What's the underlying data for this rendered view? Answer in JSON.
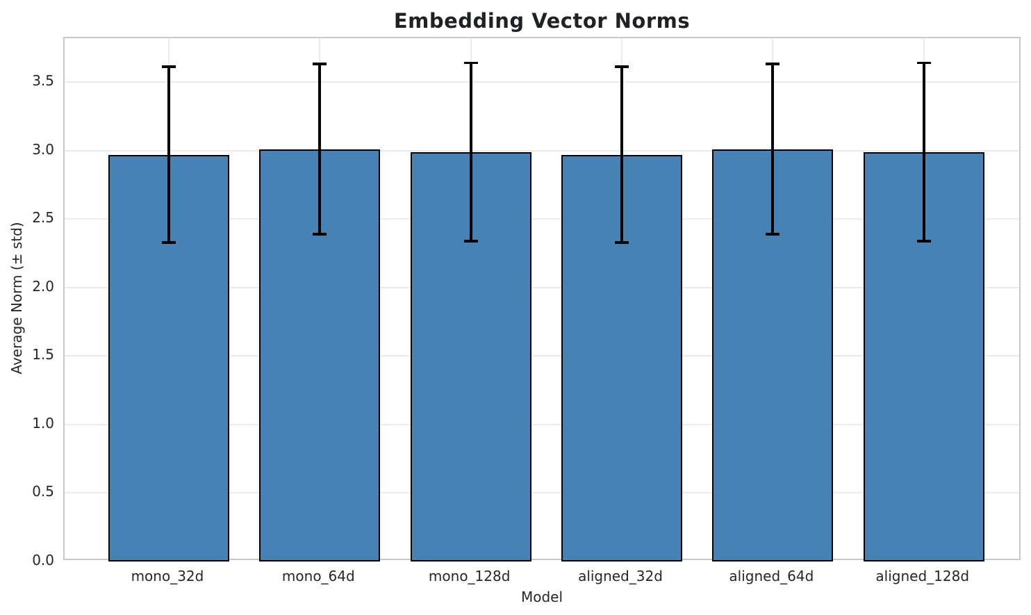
{
  "chart_data": {
    "type": "bar",
    "title": "Embedding Vector Norms",
    "xlabel": "Model",
    "ylabel": "Average Norm (± std)",
    "categories": [
      "mono_32d",
      "mono_64d",
      "mono_128d",
      "aligned_32d",
      "aligned_64d",
      "aligned_128d"
    ],
    "values": [
      2.97,
      3.01,
      2.99,
      2.97,
      3.01,
      2.99
    ],
    "errors": [
      0.65,
      0.63,
      0.66,
      0.65,
      0.63,
      0.66
    ],
    "yticks": [
      0.0,
      0.5,
      1.0,
      1.5,
      2.0,
      2.5,
      3.0,
      3.5
    ],
    "ytick_labels": [
      "0.0",
      "0.5",
      "1.0",
      "1.5",
      "2.0",
      "2.5",
      "3.0",
      "3.5"
    ],
    "ylim": [
      0,
      3.82
    ],
    "grid": true,
    "grid_axes": "both",
    "legend": null,
    "error_bars": true,
    "colors": {
      "bar_fill": "#4682B4",
      "bar_edge": "#000000",
      "error_color": "#000000",
      "grid_color": "#ebebeb",
      "spine_color": "#c9c9c9",
      "text_color": "#262626",
      "background": "#ffffff"
    }
  }
}
